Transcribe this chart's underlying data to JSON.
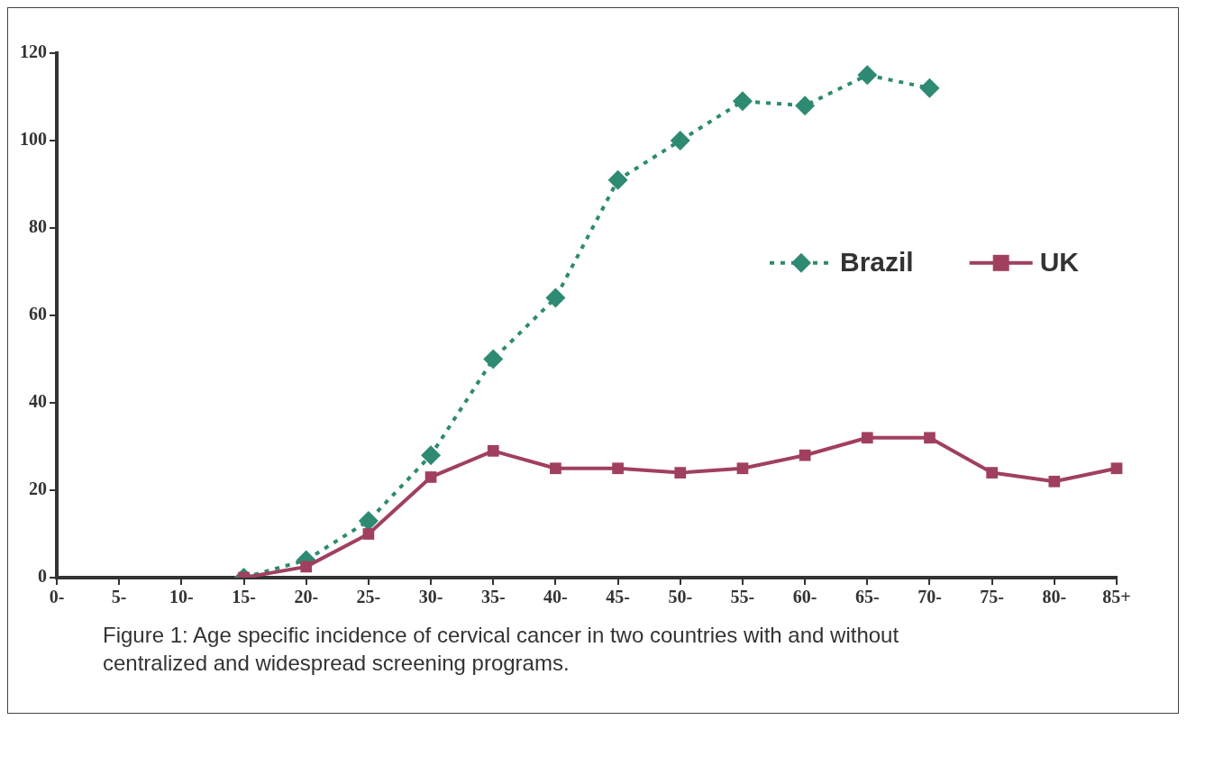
{
  "chart_data": {
    "type": "line",
    "categories": [
      "0-",
      "5-",
      "10-",
      "15-",
      "20-",
      "25-",
      "30-",
      "35-",
      "40-",
      "45-",
      "50-",
      "55-",
      "60-",
      "65-",
      "70-",
      "75-",
      "80-",
      "85+"
    ],
    "series": [
      {
        "name": "Brazil",
        "color": "#2e8a72",
        "marker": "diamond",
        "line_style": "dotted",
        "values": [
          null,
          null,
          null,
          0,
          4,
          13,
          28,
          50,
          64,
          91,
          100,
          109,
          108,
          115,
          112,
          null,
          null,
          null
        ]
      },
      {
        "name": "UK",
        "color": "#a0405e",
        "marker": "square",
        "line_style": "solid",
        "values": [
          null,
          null,
          null,
          0,
          2.5,
          10,
          23,
          29,
          25,
          25,
          24,
          25,
          28,
          32,
          32,
          24,
          22,
          25
        ]
      }
    ],
    "ylim": [
      0,
      120
    ],
    "yticks": [
      0,
      20,
      40,
      60,
      80,
      100,
      120
    ],
    "grid": false,
    "legend": "top right",
    "annotations": [
      "Figure 1:  Age specific incidence of cervical cancer in two countries with and without centralized and widespread screening programs."
    ]
  }
}
